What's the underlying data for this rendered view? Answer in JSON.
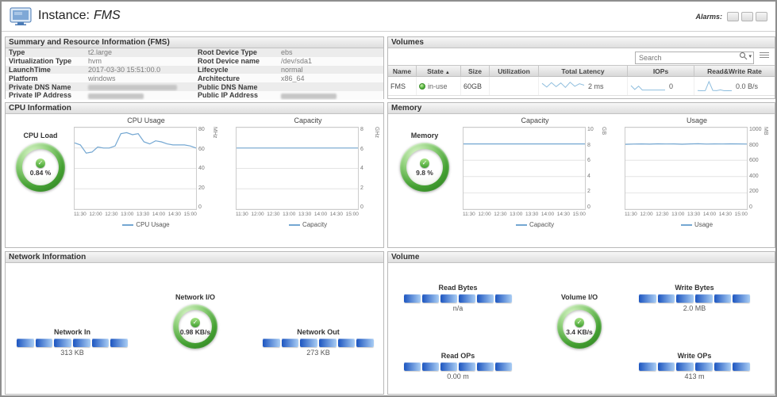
{
  "icons": {
    "sort_asc": "▲",
    "caret_down": "▾",
    "check": "✓"
  },
  "header": {
    "title_prefix": "Instance:",
    "instance_name": "FMS",
    "alarms_label": "Alarms:"
  },
  "summary": {
    "title": "Summary and Resource Information (FMS)",
    "rows": [
      {
        "l_label": "Type",
        "l_value": "t2.large",
        "r_label": "Root Device Type",
        "r_value": "ebs"
      },
      {
        "l_label": "Virtualization Type",
        "l_value": "hvm",
        "r_label": "Root Device name",
        "r_value": "/dev/sda1"
      },
      {
        "l_label": "LaunchTime",
        "l_value": "2017-03-30 15:51:00.0",
        "r_label": "Lifecycle",
        "r_value": "normal"
      },
      {
        "l_label": "Platform",
        "l_value": "windows",
        "r_label": "Architecture",
        "r_value": "x86_64"
      },
      {
        "l_label": "Private DNS Name",
        "l_value": "",
        "r_label": "Public DNS Name",
        "r_value": ""
      },
      {
        "l_label": "Private IP Address",
        "l_value": "",
        "r_label": "Public IP Address",
        "r_value": ""
      }
    ]
  },
  "volumes": {
    "title": "Volumes",
    "search_placeholder": "Search",
    "columns": {
      "name": "Name",
      "state": "State",
      "size": "Size",
      "utilization": "Utilization",
      "total_latency": "Total Latency",
      "iops": "IOPs",
      "read_write_rate": "Read&Write Rate"
    },
    "row": {
      "name": "FMS",
      "state": "in-use",
      "size": "60GB",
      "utilization": "",
      "total_latency_value": "2 ms",
      "iops_value": "0",
      "read_write_rate_value": "0.0 B/s"
    },
    "sparklines": {
      "total_latency": {
        "values": [
          2.1,
          1.1,
          2.3,
          1.2,
          2.2,
          1.0,
          2.4,
          1.3,
          2.0,
          1.6
        ],
        "ymin": 0,
        "ymax": 3
      },
      "iops": {
        "values": [
          0.5,
          0.15,
          0.45,
          0.1,
          0.1,
          0.1,
          0.1,
          0.1,
          0.1,
          0.1
        ],
        "ymin": 0,
        "ymax": 1
      },
      "read_write_rate": {
        "values": [
          0.15,
          0.1,
          0.12,
          2.6,
          0.2,
          0.12,
          0.35,
          0.1,
          0.12,
          0.1
        ],
        "ymin": 0,
        "ymax": 3
      }
    }
  },
  "cpu": {
    "title": "CPU Information",
    "gauge_label": "CPU Load",
    "gauge_value": "0.84 %",
    "charts": [
      {
        "type": "line",
        "title": "CPU Usage",
        "legend": "CPU Usage",
        "unit": "MHz",
        "ymin": 0,
        "ymax": 80,
        "yticks": [
          0,
          20,
          40,
          60,
          80
        ],
        "xlabels": [
          "11:30",
          "12:00",
          "12:30",
          "13:00",
          "13:30",
          "14:00",
          "14:30",
          "15:00"
        ],
        "values": [
          65,
          63,
          55,
          56,
          61,
          60,
          60,
          62,
          74,
          75,
          73,
          74,
          66,
          64,
          67,
          66,
          64,
          63,
          63,
          63,
          62,
          60
        ]
      },
      {
        "type": "line",
        "title": "Capacity",
        "legend": "Capacity",
        "unit": "GHz",
        "ymin": 0,
        "ymax": 8,
        "yticks": [
          0,
          2,
          4,
          6,
          8
        ],
        "xlabels": [
          "11:30",
          "12:00",
          "12:30",
          "13:00",
          "13:30",
          "14:00",
          "14:30",
          "15:00"
        ],
        "values": [
          6,
          6,
          6,
          6,
          6,
          6,
          6,
          6,
          6,
          6,
          6,
          6,
          6,
          6,
          6,
          6
        ]
      }
    ]
  },
  "memory": {
    "title": "Memory",
    "gauge_label": "Memory",
    "gauge_value": "9.8 %",
    "charts": [
      {
        "type": "line",
        "title": "Capacity",
        "legend": "Capacity",
        "unit": "GB",
        "ymin": 0,
        "ymax": 10,
        "yticks": [
          0,
          2,
          4,
          6,
          8,
          10
        ],
        "xlabels": [
          "11:30",
          "12:00",
          "12:30",
          "13:00",
          "13:30",
          "14:00",
          "14:30",
          "15:00"
        ],
        "values": [
          8,
          8,
          8,
          8,
          8,
          8,
          8,
          8,
          8,
          8,
          8,
          8,
          8,
          8,
          8,
          8
        ]
      },
      {
        "type": "line",
        "title": "Usage",
        "legend": "Usage",
        "unit": "MB",
        "ymin": 0,
        "ymax": 1000,
        "yticks": [
          0,
          200,
          400,
          600,
          800,
          1000
        ],
        "xlabels": [
          "11:30",
          "12:00",
          "12:30",
          "13:00",
          "13:30",
          "14:00",
          "14:30",
          "15:00"
        ],
        "values": [
          795,
          798,
          800,
          797,
          801,
          799,
          800,
          796,
          800,
          802,
          798,
          800,
          799,
          801,
          800,
          798
        ]
      }
    ]
  },
  "network": {
    "title": "Network Information",
    "gauge_label": "Network I/O",
    "gauge_value": "0.98 KB/s",
    "flows": [
      {
        "label": "Network In",
        "value": "313 KB"
      },
      {
        "label": "Network Out",
        "value": "273 KB"
      }
    ]
  },
  "volume": {
    "title": "Volume",
    "gauge_label": "Volume I/O",
    "gauge_value": "3.4 KB/s",
    "flows": [
      {
        "label": "Read Bytes",
        "value": "n/a"
      },
      {
        "label": "Write Bytes",
        "value": "2.0 MB"
      },
      {
        "label": "Read OPs",
        "value": "0.00 m"
      },
      {
        "label": "Write OPs",
        "value": "413 m"
      }
    ]
  }
}
